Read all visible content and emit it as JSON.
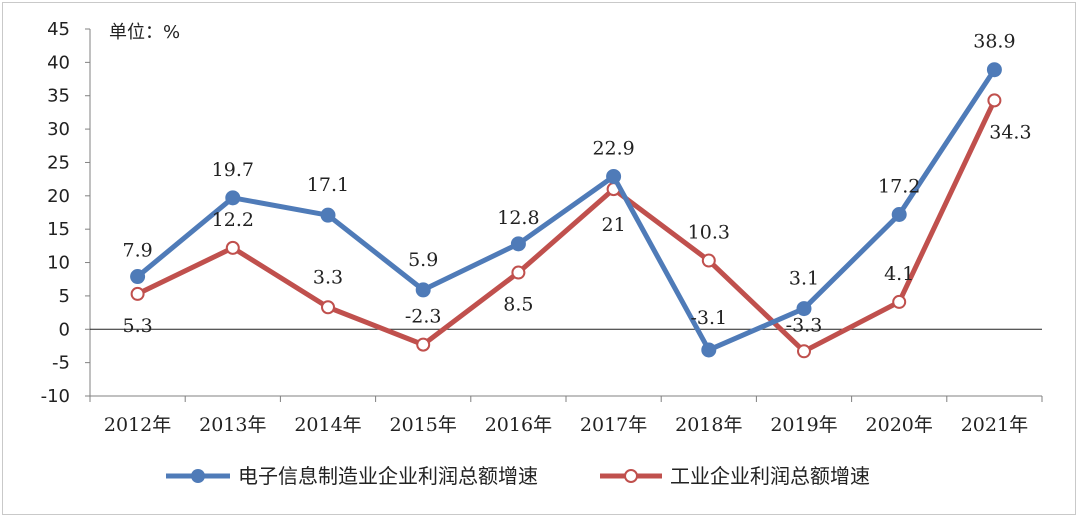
{
  "chart_data": {
    "type": "line",
    "unit_label": "单位：%",
    "categories": [
      "2012年",
      "2013年",
      "2014年",
      "2015年",
      "2016年",
      "2017年",
      "2018年",
      "2019年",
      "2020年",
      "2021年"
    ],
    "ylim": [
      -10,
      45
    ],
    "yticks": [
      "45",
      "40",
      "35",
      "30",
      "25",
      "20",
      "15",
      "10",
      "5",
      "0",
      "-5",
      "-10"
    ],
    "legend_position": "bottom",
    "grid": false,
    "series": [
      {
        "name": "电子信息制造业企业利润总额增速",
        "color": "#4f7bb8",
        "marker": "filled-circle",
        "values": [
          7.9,
          19.7,
          17.1,
          5.9,
          12.8,
          22.9,
          -3.1,
          3.1,
          17.2,
          38.9
        ],
        "labels": [
          "7.9",
          "19.7",
          "17.1",
          "5.9",
          "12.8",
          "22.9",
          "-3.1",
          "3.1",
          "17.2",
          "38.9"
        ]
      },
      {
        "name": "工业企业利润总额增速",
        "color": "#c0504d",
        "marker": "hollow-circle",
        "values": [
          5.3,
          12.2,
          3.3,
          -2.3,
          8.5,
          21,
          10.3,
          -3.3,
          4.1,
          34.3
        ],
        "labels": [
          "5.3",
          "12.2",
          "3.3",
          "-2.3",
          "8.5",
          "21",
          "10.3",
          "-3.3",
          "4.1",
          "34.3"
        ]
      }
    ]
  }
}
